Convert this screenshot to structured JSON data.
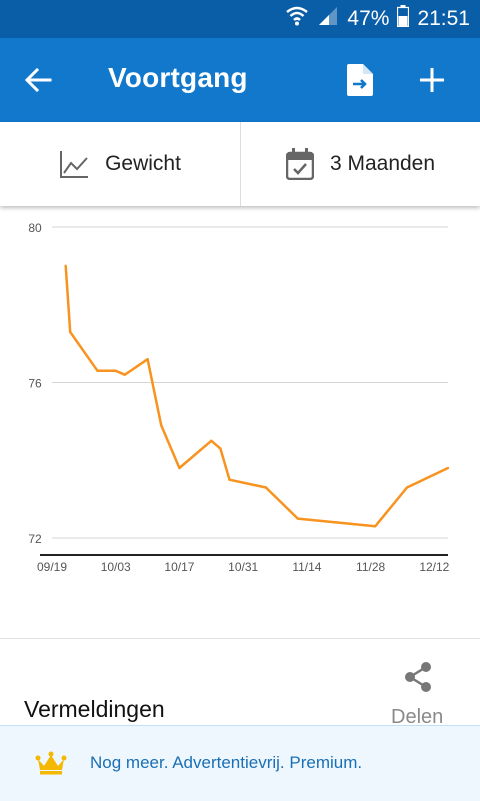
{
  "status_bar": {
    "battery_percent": "47%",
    "time": "21:51"
  },
  "app_bar": {
    "title": "Voortgang"
  },
  "filters": {
    "metric_label": "Gewicht",
    "period_label": "3 Maanden"
  },
  "chart_data": {
    "type": "line",
    "xlabel": "",
    "ylabel": "",
    "xlim": [
      "09/19",
      "12/15"
    ],
    "ylim": [
      71.5,
      80
    ],
    "y_ticks": [
      72,
      76,
      80
    ],
    "y_tick_labels": [
      "72",
      "76",
      "80"
    ],
    "x_tick_labels": [
      "09/19",
      "10/03",
      "10/17",
      "10/31",
      "11/14",
      "11/28",
      "12/12"
    ],
    "grid": true,
    "color": "#f7931e",
    "series": [
      {
        "x": [
          "09/22",
          "09/23",
          "09/29",
          "10/03",
          "10/05",
          "10/10",
          "10/13",
          "10/17",
          "10/24",
          "10/26",
          "10/28",
          "11/05",
          "11/12",
          "11/29",
          "12/06",
          "12/15"
        ],
        "values": [
          79.0,
          77.3,
          76.3,
          76.3,
          76.2,
          76.6,
          74.9,
          73.8,
          74.5,
          74.3,
          73.5,
          73.3,
          72.5,
          72.3,
          73.3,
          73.8
        ]
      }
    ]
  },
  "mentions": {
    "title": "Vermeldingen",
    "share_label": "Delen"
  },
  "promo": {
    "text": "Nog meer. Advertentievrij. Premium."
  }
}
